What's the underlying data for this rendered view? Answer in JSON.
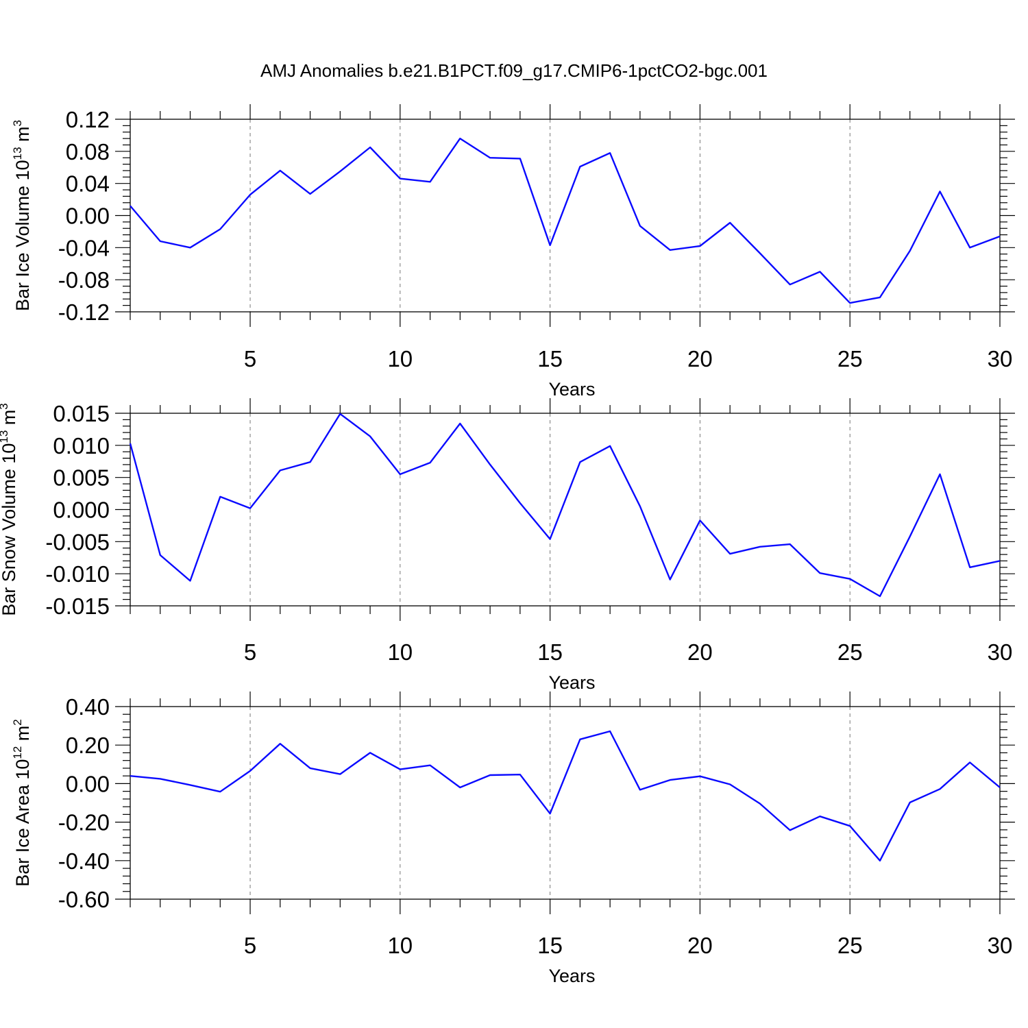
{
  "title": "AMJ Anomalies b.e21.B1PCT.f09_g17.CMIP6-1pctCO2-bgc.001",
  "colors": {
    "series": "#0a0aff",
    "grid": "#777777"
  },
  "chart_data": [
    {
      "type": "line",
      "xlabel": "Years",
      "ylabel": {
        "main": "Bar Ice Volume 10",
        "exp": "13",
        "unit": " m",
        "unit_exp": "3"
      },
      "xlim": [
        1,
        30
      ],
      "ylim": [
        -0.12,
        0.12
      ],
      "grid": "vertical dashed",
      "x_ticks": [
        5,
        10,
        15,
        20,
        25,
        30
      ],
      "x_tick_labels": [
        "5",
        "10",
        "15",
        "20",
        "25",
        "30"
      ],
      "y_ticks": [
        -0.12,
        -0.08,
        -0.04,
        0.0,
        0.04,
        0.08,
        0.12
      ],
      "y_tick_labels": [
        "-0.12",
        "-0.08",
        "-0.04",
        "0.00",
        "0.04",
        "0.08",
        "0.12"
      ],
      "x": [
        1,
        2,
        3,
        4,
        5,
        6,
        7,
        8,
        9,
        10,
        11,
        12,
        13,
        14,
        15,
        16,
        17,
        18,
        19,
        20,
        21,
        22,
        23,
        24,
        25,
        26,
        27,
        28,
        29,
        30
      ],
      "y": [
        0.012,
        -0.032,
        -0.04,
        -0.017,
        0.026,
        0.056,
        0.027,
        0.055,
        0.085,
        0.046,
        0.042,
        0.096,
        0.072,
        0.071,
        -0.037,
        0.061,
        0.078,
        -0.013,
        -0.043,
        -0.038,
        -0.009,
        -0.047,
        -0.086,
        -0.07,
        -0.109,
        -0.102,
        -0.044,
        0.03,
        -0.04,
        -0.026
      ]
    },
    {
      "type": "line",
      "xlabel": "Years",
      "ylabel": {
        "main": "Bar Snow Volume 10",
        "exp": "13",
        "unit": " m",
        "unit_exp": "3"
      },
      "xlim": [
        1,
        30
      ],
      "ylim": [
        -0.015,
        0.015
      ],
      "grid": "vertical dashed",
      "x_ticks": [
        5,
        10,
        15,
        20,
        25,
        30
      ],
      "x_tick_labels": [
        "5",
        "10",
        "15",
        "20",
        "25",
        "30"
      ],
      "y_ticks": [
        -0.015,
        -0.01,
        -0.005,
        0.0,
        0.005,
        0.01,
        0.015
      ],
      "y_tick_labels": [
        "-0.015",
        "-0.010",
        "-0.005",
        "0.000",
        "0.005",
        "0.010",
        "0.015"
      ],
      "x": [
        1,
        2,
        3,
        4,
        5,
        6,
        7,
        8,
        9,
        10,
        11,
        12,
        13,
        14,
        15,
        16,
        17,
        18,
        19,
        20,
        21,
        22,
        23,
        24,
        25,
        26,
        27,
        28,
        29,
        30
      ],
      "y": [
        0.0103,
        -0.0071,
        -0.0111,
        0.002,
        0.0002,
        0.0061,
        0.0074,
        0.0149,
        0.0114,
        0.0055,
        0.0073,
        0.0134,
        0.007,
        0.001,
        -0.0046,
        0.0074,
        0.0099,
        0.0005,
        -0.0109,
        -0.0017,
        -0.0069,
        -0.0058,
        -0.0054,
        -0.0099,
        -0.0108,
        -0.0135,
        -0.0042,
        0.0055,
        -0.009,
        -0.008
      ]
    },
    {
      "type": "line",
      "xlabel": "Years",
      "ylabel": {
        "main": "Bar Ice Area 10",
        "exp": "12",
        "unit": " m",
        "unit_exp": "2"
      },
      "xlim": [
        1,
        30
      ],
      "ylim": [
        -0.6,
        0.4
      ],
      "grid": "vertical dashed",
      "x_ticks": [
        5,
        10,
        15,
        20,
        25,
        30
      ],
      "x_tick_labels": [
        "5",
        "10",
        "15",
        "20",
        "25",
        "30"
      ],
      "y_ticks": [
        -0.6,
        -0.4,
        -0.2,
        0.0,
        0.2,
        0.4
      ],
      "y_tick_labels": [
        "-0.60",
        "-0.40",
        "-0.20",
        "0.00",
        "0.20",
        "0.40"
      ],
      "x": [
        1,
        2,
        3,
        4,
        5,
        6,
        7,
        8,
        9,
        10,
        11,
        12,
        13,
        14,
        15,
        16,
        17,
        18,
        19,
        20,
        21,
        22,
        23,
        24,
        25,
        26,
        27,
        28,
        29,
        30
      ],
      "y": [
        0.04,
        0.025,
        -0.007,
        -0.042,
        0.066,
        0.207,
        0.08,
        0.049,
        0.16,
        0.074,
        0.095,
        -0.02,
        0.044,
        0.047,
        -0.156,
        0.23,
        0.272,
        -0.032,
        0.019,
        0.038,
        -0.004,
        -0.104,
        -0.242,
        -0.17,
        -0.22,
        -0.4,
        -0.098,
        -0.028,
        0.11,
        -0.02
      ]
    }
  ]
}
